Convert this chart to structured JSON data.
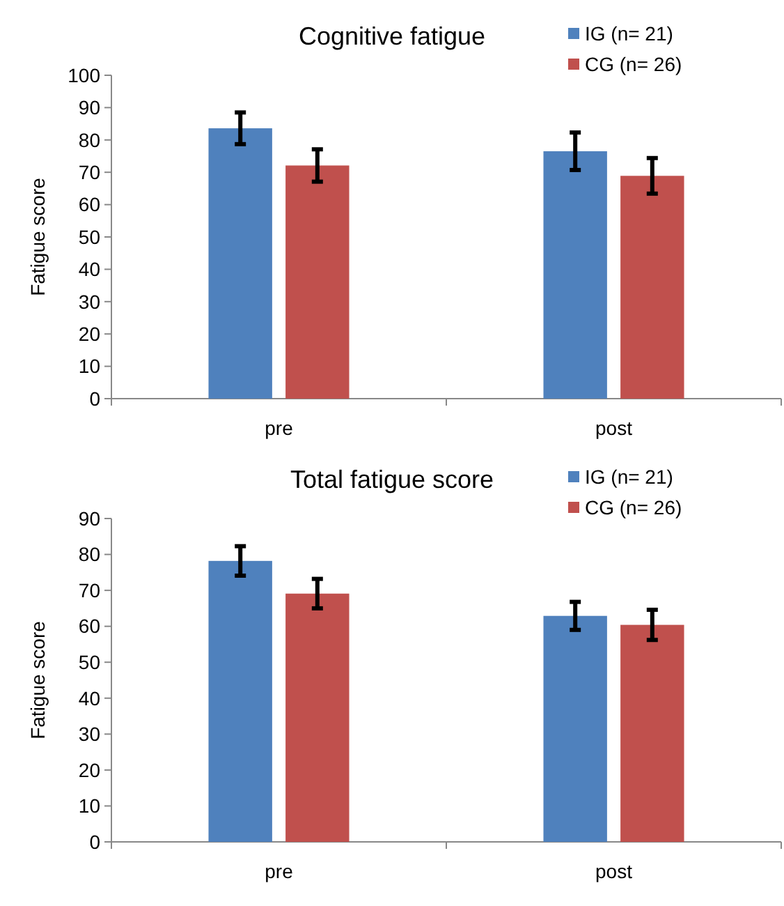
{
  "chart_data": [
    {
      "type": "bar",
      "title": "Cognitive fatigue",
      "ylabel": "Fatigue score",
      "categories": [
        "pre",
        "post"
      ],
      "series": [
        {
          "name": "IG (n= 21)",
          "color": "#4f81bd",
          "values": [
            83.6,
            76.5
          ],
          "errors": [
            4.9,
            5.8
          ]
        },
        {
          "name": "CG (n= 26)",
          "color": "#c0504d",
          "values": [
            72.1,
            68.9
          ],
          "errors": [
            5,
            5.5
          ]
        }
      ],
      "ylim": [
        0,
        100
      ],
      "yticks": [
        0,
        10,
        20,
        30,
        40,
        50,
        60,
        70,
        80,
        90,
        100
      ],
      "grid": false,
      "legend": "top right"
    },
    {
      "type": "bar",
      "title": "Total fatigue score",
      "ylabel": "Fatigue score",
      "categories": [
        "pre",
        "post"
      ],
      "series": [
        {
          "name": "IG (n= 21)",
          "color": "#4f81bd",
          "values": [
            78.2,
            62.9
          ],
          "errors": [
            4.1,
            3.9
          ]
        },
        {
          "name": "CG (n= 26)",
          "color": "#c0504d",
          "values": [
            69.1,
            60.4
          ],
          "errors": [
            4.1,
            4.2
          ]
        }
      ],
      "ylim": [
        0,
        90
      ],
      "yticks": [
        0,
        10,
        20,
        30,
        40,
        50,
        60,
        70,
        80,
        90
      ],
      "grid": false,
      "legend": "top right"
    }
  ]
}
